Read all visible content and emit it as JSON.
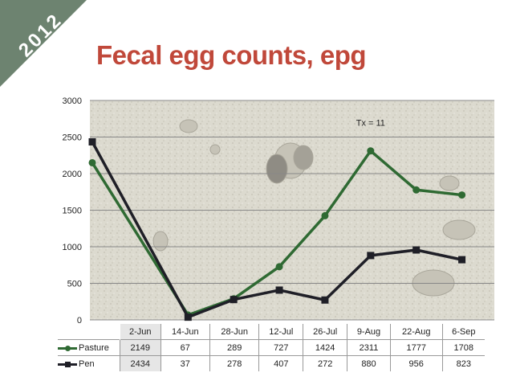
{
  "badge": {
    "year": "2012"
  },
  "title": "Fecal egg counts, epg",
  "chart_data": {
    "type": "line",
    "title": "Fecal egg counts, epg",
    "categories": [
      "2-Jun",
      "14-Jun",
      "28-Jun",
      "12-Jul",
      "26-Jul",
      "9-Aug",
      "22-Aug",
      "6-Sep"
    ],
    "ylim": [
      0,
      3000
    ],
    "yticks": [
      0,
      500,
      1000,
      1500,
      2000,
      2500,
      3000
    ],
    "grid": true,
    "legend": "data-table",
    "series": [
      {
        "name": "Pasture",
        "values": [
          2149,
          67,
          289,
          727,
          1424,
          2311,
          1777,
          1708
        ],
        "color": "#2f6a33",
        "marker": "circle"
      },
      {
        "name": "Pen",
        "values": [
          2434,
          37,
          278,
          407,
          272,
          880,
          956,
          823
        ],
        "color": "#1f1f27",
        "marker": "square"
      }
    ],
    "annotations": [
      {
        "text": "Tx = 11",
        "x": "9-Aug",
        "y": 2700
      }
    ]
  }
}
